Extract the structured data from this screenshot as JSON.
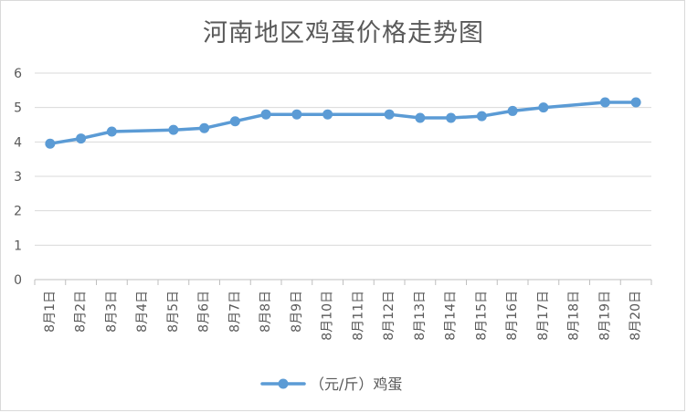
{
  "chart_data": {
    "type": "line",
    "title": "河南地区鸡蛋价格走势图",
    "categories": [
      "8月1日",
      "8月2日",
      "8月3日",
      "8月4日",
      "8月5日",
      "8月6日",
      "8月7日",
      "8月8日",
      "8月9日",
      "8月10日",
      "8月11日",
      "8月12日",
      "8月13日",
      "8月14日",
      "8月15日",
      "8月16日",
      "8月17日",
      "8月18日",
      "8月19日",
      "8月20日"
    ],
    "series": [
      {
        "name": "（元/斤）鸡蛋",
        "color": "#5b9bd5",
        "values": [
          3.95,
          4.1,
          4.3,
          null,
          4.35,
          4.4,
          4.6,
          4.8,
          4.8,
          4.8,
          null,
          4.8,
          4.7,
          4.7,
          4.75,
          4.9,
          5.0,
          null,
          5.15,
          5.15
        ]
      }
    ],
    "ylim": [
      0,
      6
    ],
    "yticks": [
      0,
      1,
      2,
      3,
      4,
      5,
      6
    ],
    "grid": true,
    "legend": "bottom",
    "gap_mode": "connect"
  }
}
